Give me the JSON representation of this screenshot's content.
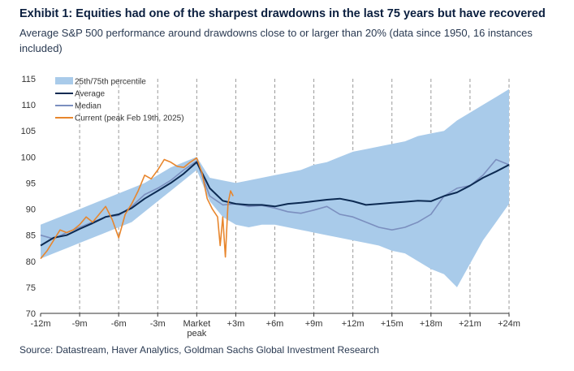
{
  "header": {
    "title": "Exhibit 1: Equities had one of the sharpest drawdowns in the last 75 years but have recovered",
    "subtitle": "Average S&P 500 performance around drawdowns close to or larger than 20% (data since 1950, 16 instances included)"
  },
  "footer": {
    "source": "Source: Datastream, Haver Analytics, Goldman Sachs Global Investment Research"
  },
  "colors": {
    "band": "#a9cbea",
    "average": "#0c2a52",
    "median": "#7b8fbf",
    "current": "#e8862d",
    "grid": "#9a9a9a"
  },
  "chart_data": {
    "type": "line",
    "title": "Exhibit 1: Equities had one of the sharpest drawdowns in the last 75 years but have recovered",
    "xlabel": "",
    "ylabel": "",
    "xlim": [
      -12,
      24
    ],
    "ylim": [
      70,
      115
    ],
    "x_tick_labels": [
      "-12m",
      "-9m",
      "-6m",
      "-3m",
      "Market peak",
      "+3m",
      "+6m",
      "+9m",
      "+12m",
      "+15m",
      "+18m",
      "+21m",
      "+24m"
    ],
    "y_ticks": [
      70,
      75,
      80,
      85,
      90,
      95,
      100,
      105,
      110,
      115
    ],
    "legend_position": "top-left",
    "vertical_dashed_lines_at": [
      -9,
      -6,
      -3,
      0,
      3,
      6,
      9,
      12,
      15,
      18,
      21,
      24
    ],
    "series": [
      {
        "name": "25th/75th percentile",
        "kind": "band",
        "x": [
          -12,
          -11,
          -10,
          -9,
          -8,
          -7,
          -6,
          -5,
          -4,
          -3,
          -2,
          -1,
          0,
          1,
          2,
          3,
          4,
          5,
          6,
          7,
          8,
          9,
          10,
          11,
          12,
          13,
          14,
          15,
          16,
          17,
          18,
          19,
          20,
          21,
          22,
          23,
          24
        ],
        "lower": [
          80.5,
          81.5,
          82.5,
          83.5,
          84.5,
          85.5,
          86.5,
          87.5,
          89.5,
          91.5,
          93.5,
          95.5,
          97.5,
          91.5,
          88.5,
          87,
          86.5,
          87,
          87,
          86.5,
          86,
          85.5,
          85,
          84.5,
          84,
          83.5,
          83,
          82,
          81.5,
          80,
          78.5,
          77.5,
          75,
          79.5,
          84,
          87.5,
          91
        ],
        "upper": [
          87,
          88,
          89,
          90,
          91,
          92,
          93,
          94,
          95,
          96.5,
          98,
          99,
          100,
          96,
          95.5,
          95,
          95.5,
          96,
          96.5,
          97,
          97.5,
          98.5,
          99,
          100,
          101,
          101.5,
          102,
          102.5,
          103,
          104,
          104.5,
          105,
          107,
          108.5,
          110,
          111.5,
          113
        ]
      },
      {
        "name": "Average",
        "x": [
          -12,
          -11,
          -10,
          -9,
          -8,
          -7,
          -6,
          -5,
          -4,
          -3,
          -2,
          -1,
          0,
          1,
          2,
          3,
          4,
          5,
          6,
          7,
          8,
          9,
          10,
          11,
          12,
          13,
          14,
          15,
          16,
          17,
          18,
          19,
          20,
          21,
          22,
          23,
          24
        ],
        "values": [
          83,
          84.5,
          85,
          86.2,
          87.3,
          88.5,
          89,
          90.2,
          92,
          93.5,
          95,
          96.8,
          99,
          94,
          91.6,
          91,
          90.8,
          90.8,
          90.5,
          91,
          91.2,
          91.5,
          91.8,
          92,
          91.5,
          90.8,
          91,
          91.2,
          91.4,
          91.6,
          91.5,
          92.5,
          93.2,
          94.5,
          96,
          97.2,
          98.5
        ]
      },
      {
        "name": "Median",
        "x": [
          -12,
          -11,
          -10,
          -9,
          -8,
          -7,
          -6,
          -5,
          -4,
          -3,
          -2,
          -1,
          0,
          1,
          2,
          3,
          4,
          5,
          6,
          7,
          8,
          9,
          10,
          11,
          12,
          13,
          14,
          15,
          16,
          17,
          18,
          19,
          20,
          21,
          22,
          23,
          24
        ],
        "values": [
          85,
          84.3,
          85.5,
          86.5,
          87.5,
          88.5,
          88.8,
          90.5,
          92.8,
          94,
          95.5,
          97.5,
          99.2,
          92.5,
          90.8,
          91,
          90.5,
          90.7,
          90.2,
          89.5,
          89.2,
          89.8,
          90.5,
          89,
          88.5,
          87.5,
          86.5,
          86,
          86.5,
          87.5,
          89,
          92.5,
          94,
          94.5,
          96.5,
          99.5,
          98.5
        ]
      },
      {
        "name": "Current (peak Feb 19th, 2025)",
        "x": [
          -12,
          -11.5,
          -11,
          -10.5,
          -10,
          -9.5,
          -9,
          -8.5,
          -8,
          -7.5,
          -7,
          -6.5,
          -6,
          -5.5,
          -5,
          -4.5,
          -4,
          -3.5,
          -3,
          -2.5,
          -2,
          -1.5,
          -1,
          -0.5,
          0,
          0.4,
          0.8,
          1.2,
          1.6,
          1.8,
          2.0,
          2.2,
          2.4,
          2.6,
          2.8
        ],
        "values": [
          80.5,
          82,
          84,
          86,
          85.5,
          86,
          87,
          88.5,
          87.5,
          89,
          90.5,
          88,
          84.5,
          89,
          91,
          93.5,
          96.5,
          95.8,
          97.5,
          99.5,
          99,
          98.2,
          98,
          99,
          99.8,
          97,
          92,
          90,
          88.5,
          83,
          88.5,
          80.8,
          91,
          93.5,
          92.5
        ]
      }
    ]
  }
}
